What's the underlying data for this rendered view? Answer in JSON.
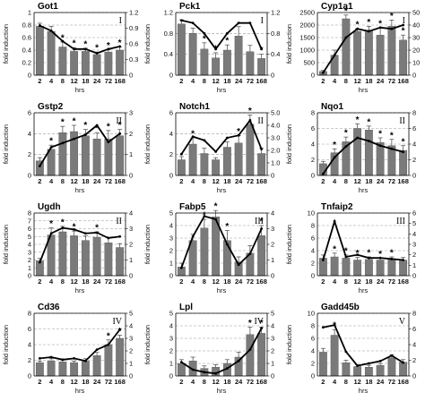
{
  "labels": {
    "ylabel": "fold induction",
    "xlabel": "hrs"
  },
  "colors": {
    "bar": "#7a7a7a",
    "line": "#000000",
    "grid": "#9a9a9a"
  },
  "chart_data": [
    {
      "type": "bar",
      "title": "Got1",
      "group": "I",
      "categories": [
        "2",
        "4",
        "8",
        "12",
        "18",
        "24",
        "72",
        "168"
      ],
      "series": [
        {
          "values": [
            0.78,
            0.7,
            0.45,
            0.38,
            0.38,
            0.33,
            0.37,
            0.4
          ]
        }
      ],
      "errors": [
        0.05,
        0.08,
        0.08,
        0.06,
        0.05,
        0.04,
        0.04,
        0.05
      ],
      "line": [
        0.95,
        0.85,
        0.65,
        0.5,
        0.5,
        0.42,
        0.5,
        0.55
      ],
      "significant": [
        false,
        false,
        true,
        true,
        true,
        true,
        true,
        true
      ],
      "ylim": [
        0,
        1.0
      ],
      "yticks": [
        "0",
        "0.2",
        "0.4",
        "0.6",
        "0.8",
        "1"
      ],
      "y2lim": [
        0,
        1.2
      ],
      "y2ticks": [
        "0",
        "0.3",
        "0.6",
        "0.9",
        "1.2"
      ]
    },
    {
      "type": "bar",
      "title": "Pck1",
      "group": "I",
      "categories": [
        "2",
        "4",
        "8",
        "12",
        "18",
        "24",
        "72",
        "168"
      ],
      "series": [
        {
          "values": [
            0.98,
            0.8,
            0.5,
            0.33,
            0.48,
            0.75,
            0.45,
            0.32
          ]
        }
      ],
      "errors": [
        0.08,
        0.1,
        0.12,
        0.1,
        0.1,
        0.18,
        0.12,
        0.08
      ],
      "line": [
        1.05,
        1.0,
        0.8,
        0.5,
        0.8,
        1.0,
        1.0,
        0.5
      ],
      "significant": [
        false,
        false,
        true,
        true,
        true,
        false,
        false,
        true
      ],
      "ylim": [
        0,
        1.2
      ],
      "yticks": [
        "0",
        "0.4",
        "0.8",
        "1.2"
      ],
      "y2lim": [
        0,
        1.2
      ],
      "y2ticks": [
        "0",
        "0.4",
        "0.8",
        "1.2"
      ]
    },
    {
      "type": "bar",
      "title": "Cyp1a1",
      "group": "I",
      "categories": [
        "2",
        "4",
        "8",
        "12",
        "18",
        "24",
        "72",
        "168"
      ],
      "series": [
        {
          "values": [
            150,
            800,
            2250,
            1750,
            1800,
            1600,
            1950,
            1400
          ]
        }
      ],
      "errors": [
        40,
        200,
        150,
        100,
        150,
        300,
        250,
        200
      ],
      "line": [
        2,
        16,
        30,
        37,
        35,
        38,
        37,
        40
      ],
      "significant": [
        false,
        false,
        true,
        true,
        true,
        true,
        true,
        true
      ],
      "ylim": [
        0,
        2500
      ],
      "yticks": [
        "0",
        "500",
        "1000",
        "1500",
        "2000",
        "2500"
      ],
      "y2lim": [
        0,
        50
      ],
      "y2ticks": [
        "0",
        "10",
        "20",
        "30",
        "40",
        "50"
      ]
    },
    {
      "type": "bar",
      "title": "Gstp2",
      "group": "II",
      "categories": [
        "2",
        "4",
        "8",
        "12",
        "18",
        "24",
        "72",
        "168"
      ],
      "series": [
        {
          "values": [
            1.4,
            2.5,
            4.1,
            4.2,
            3.8,
            3.5,
            3.5,
            3.8
          ]
        }
      ],
      "errors": [
        0.3,
        0.4,
        0.6,
        0.6,
        0.6,
        0.6,
        0.8,
        0.6
      ],
      "line": [
        0.45,
        1.35,
        1.55,
        1.75,
        1.95,
        2.4,
        1.6,
        2.0
      ],
      "significant": [
        false,
        true,
        true,
        true,
        true,
        true,
        true,
        true
      ],
      "ylim": [
        0,
        6
      ],
      "yticks": [
        "0",
        "2",
        "4",
        "6"
      ],
      "y2lim": [
        0,
        3
      ],
      "y2ticks": [
        "0",
        "1",
        "2",
        "3"
      ]
    },
    {
      "type": "bar",
      "title": "Notch1",
      "group": "II",
      "categories": [
        "2",
        "4",
        "8",
        "12",
        "18",
        "24",
        "72",
        "168"
      ],
      "series": [
        {
          "values": [
            1.5,
            3.0,
            2.1,
            1.5,
            2.7,
            3.1,
            4.9,
            2.1
          ]
        }
      ],
      "errors": [
        0.3,
        0.6,
        0.5,
        0.2,
        0.5,
        0.7,
        0.9,
        0.5
      ],
      "line": [
        1.7,
        3.1,
        2.8,
        1.9,
        3.0,
        3.2,
        4.4,
        2.1
      ],
      "significant": [
        false,
        true,
        false,
        false,
        false,
        true,
        true,
        false
      ],
      "ylim": [
        0,
        6
      ],
      "yticks": [
        "0",
        "2",
        "4",
        "6"
      ],
      "y2lim": [
        0,
        5
      ],
      "y2ticks": [
        "0",
        "1.0",
        "2.0",
        "3.0",
        "4.0",
        "5.0"
      ]
    },
    {
      "type": "bar",
      "title": "Nqo1",
      "group": "II",
      "categories": [
        "2",
        "4",
        "8",
        "12",
        "18",
        "24",
        "72",
        "168"
      ],
      "series": [
        {
          "values": [
            1.5,
            2.9,
            4.3,
            6.0,
            5.8,
            4.2,
            3.8,
            3.2
          ]
        }
      ],
      "errors": [
        0.3,
        0.5,
        0.6,
        0.6,
        0.5,
        0.6,
        0.8,
        0.6
      ],
      "line": [
        0.2,
        2.3,
        3.7,
        4.8,
        4.4,
        3.8,
        3.4,
        3.0
      ],
      "significant": [
        false,
        true,
        true,
        true,
        true,
        true,
        true,
        true
      ],
      "ylim": [
        0,
        8
      ],
      "yticks": [
        "0",
        "2",
        "4",
        "6",
        "8"
      ],
      "y2lim": [
        0,
        8
      ],
      "y2ticks": [
        "0",
        "2",
        "4",
        "6",
        "8"
      ]
    },
    {
      "type": "bar",
      "title": "Ugdh",
      "group": "II",
      "categories": [
        "2",
        "4",
        "8",
        "12",
        "18",
        "24",
        "72",
        "168"
      ],
      "series": [
        {
          "values": [
            1.9,
            5.2,
            5.6,
            5.1,
            4.5,
            4.9,
            4.2,
            3.6
          ]
        }
      ],
      "errors": [
        0.3,
        0.9,
        0.7,
        0.6,
        0.6,
        0.7,
        0.7,
        0.5
      ],
      "line": [
        0.85,
        2.7,
        3.05,
        2.95,
        2.7,
        2.75,
        2.4,
        2.5
      ],
      "significant": [
        false,
        true,
        true,
        true,
        false,
        true,
        false,
        false
      ],
      "ylim": [
        0,
        8
      ],
      "yticks": [
        "0",
        "1",
        "2",
        "3",
        "4",
        "5",
        "6",
        "7",
        "8"
      ],
      "y2lim": [
        0,
        4
      ],
      "y2ticks": [
        "0",
        "1",
        "2",
        "3",
        "4"
      ]
    },
    {
      "type": "bar",
      "title": "Fabp5",
      "group": "III",
      "categories": [
        "2",
        "4",
        "8",
        "12",
        "18",
        "24",
        "72",
        "168"
      ],
      "series": [
        {
          "values": [
            0.7,
            2.8,
            3.8,
            4.7,
            2.8,
            1.1,
            1.8,
            3.2
          ]
        }
      ],
      "errors": [
        0.3,
        0.5,
        0.7,
        0.5,
        0.8,
        0.4,
        0.6,
        0.8
      ],
      "line": [
        0.5,
        2.5,
        3.8,
        3.6,
        2.0,
        0.7,
        1.4,
        3.0
      ],
      "significant": [
        false,
        false,
        true,
        true,
        true,
        false,
        false,
        true
      ],
      "ylim": [
        0,
        5
      ],
      "yticks": [
        "0",
        "1",
        "2",
        "3",
        "4",
        "5"
      ],
      "y2lim": [
        0,
        4
      ],
      "y2ticks": [
        "0",
        "1",
        "2",
        "3",
        "4"
      ]
    },
    {
      "type": "bar",
      "title": "Tnfaip2",
      "group": "III",
      "categories": [
        "2",
        "4",
        "8",
        "12",
        "18",
        "24",
        "72",
        "168"
      ],
      "series": [
        {
          "values": [
            2.8,
            3.0,
            2.8,
            2.5,
            2.6,
            2.5,
            2.6,
            2.5
          ]
        }
      ],
      "errors": [
        0.5,
        0.6,
        0.5,
        0.4,
        0.4,
        0.3,
        0.4,
        0.4
      ],
      "line": [
        1.5,
        5.2,
        1.8,
        2.0,
        1.7,
        1.7,
        1.6,
        1.5
      ],
      "significant": [
        false,
        true,
        true,
        true,
        true,
        true,
        true,
        false
      ],
      "ylim": [
        0,
        10
      ],
      "yticks": [
        "0",
        "2",
        "4",
        "6",
        "8",
        "10"
      ],
      "y2lim": [
        0,
        6
      ],
      "y2ticks": [
        "0",
        "1",
        "2",
        "3",
        "4",
        "5",
        "6"
      ]
    },
    {
      "type": "bar",
      "title": "Cd36",
      "group": "IV",
      "categories": [
        "2",
        "4",
        "8",
        "12",
        "18",
        "24",
        "72",
        "168"
      ],
      "series": [
        {
          "values": [
            1.7,
            1.9,
            1.8,
            1.7,
            1.9,
            2.6,
            4.0,
            4.8
          ]
        }
      ],
      "errors": [
        0.2,
        0.3,
        0.2,
        0.2,
        0.3,
        0.4,
        0.6,
        0.4
      ],
      "line": [
        1.4,
        1.5,
        1.3,
        1.4,
        1.2,
        2.1,
        2.5,
        3.7
      ],
      "significant": [
        false,
        false,
        false,
        false,
        false,
        false,
        true,
        true
      ],
      "ylim": [
        0,
        8
      ],
      "yticks": [
        "0",
        "2",
        "4",
        "6",
        "8"
      ],
      "y2lim": [
        0,
        5
      ],
      "y2ticks": [
        "0",
        "1",
        "2",
        "3",
        "4",
        "5"
      ]
    },
    {
      "type": "bar",
      "title": "Lpl",
      "group": "IV",
      "categories": [
        "2",
        "4",
        "8",
        "12",
        "18",
        "24",
        "72",
        "168"
      ],
      "series": [
        {
          "values": [
            1.0,
            1.2,
            0.6,
            0.7,
            1.0,
            1.5,
            3.3,
            3.4
          ]
        }
      ],
      "errors": [
        0.3,
        0.3,
        0.2,
        0.2,
        0.3,
        0.4,
        0.6,
        0.5
      ],
      "line": [
        1.1,
        0.5,
        0.3,
        0.2,
        0.6,
        1.2,
        2.1,
        3.8
      ],
      "significant": [
        false,
        false,
        false,
        false,
        false,
        false,
        true,
        true
      ],
      "ylim": [
        0,
        5
      ],
      "yticks": [
        "0",
        "1",
        "2",
        "3",
        "4",
        "5"
      ],
      "y2lim": [
        0,
        5
      ],
      "y2ticks": [
        "0",
        "1",
        "2",
        "3",
        "4",
        "5"
      ]
    },
    {
      "type": "bar",
      "title": "Gadd45b",
      "group": "V",
      "categories": [
        "2",
        "4",
        "8",
        "12",
        "18",
        "24",
        "72",
        "168"
      ],
      "series": [
        {
          "values": [
            3.8,
            6.5,
            2.1,
            1.5,
            1.4,
            1.7,
            2.9,
            2.2
          ]
        }
      ],
      "errors": [
        0.6,
        0.9,
        0.4,
        0.3,
        0.3,
        0.3,
        0.5,
        0.4
      ],
      "line": [
        6.2,
        6.5,
        3.1,
        1.3,
        1.6,
        1.9,
        2.6,
        1.7
      ],
      "significant": [
        false,
        true,
        false,
        false,
        false,
        false,
        false,
        false
      ],
      "ylim": [
        0,
        10
      ],
      "yticks": [
        "0",
        "2",
        "4",
        "6",
        "8",
        "10"
      ],
      "y2lim": [
        0,
        8
      ],
      "y2ticks": [
        "0",
        "2",
        "4",
        "6",
        "8"
      ]
    }
  ]
}
